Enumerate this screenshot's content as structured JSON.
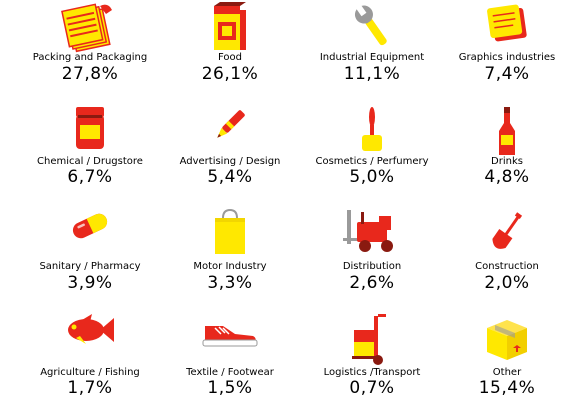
{
  "chart_data": {
    "type": "table",
    "categories": [
      "Packing and Packaging",
      "Food",
      "Industrial Equipment",
      "Graphics industries",
      "Chemical / Drugstore",
      "Advertising / Design",
      "Cosmetics / Perfumery",
      "Drinks",
      "Sanitary / Pharmacy",
      "Motor Industry",
      "Distribution",
      "Construction",
      "Agriculture / Fishing",
      "Textile / Footwear",
      "Logistics /Transport",
      "Other"
    ],
    "values": [
      27.8,
      26.1,
      11.1,
      7.4,
      6.7,
      5.4,
      5.0,
      4.8,
      3.9,
      3.3,
      2.6,
      2.0,
      1.7,
      1.5,
      0.7,
      15.4
    ],
    "value_labels": [
      "27,8%",
      "26,1%",
      "11,1%",
      "7,4%",
      "6,7%",
      "5,4%",
      "5,0%",
      "4,8%",
      "3,9%",
      "3,3%",
      "2,6%",
      "2,0%",
      "1,7%",
      "1,5%",
      "0,7%",
      "15,4%"
    ],
    "icons": [
      "packaging-icon",
      "food-box-icon",
      "wrench-icon",
      "paper-stack-icon",
      "jar-icon",
      "pen-icon",
      "perfume-brush-icon",
      "bottle-icon",
      "pill-capsule-icon",
      "shopping-bag-icon",
      "forklift-icon",
      "shovel-icon",
      "fish-icon",
      "sneaker-icon",
      "hand-truck-icon",
      "cardboard-box-icon"
    ],
    "colors": {
      "yellow": "#ffe800",
      "red": "#e8281c",
      "dark": "#8a1a10",
      "grey": "#9a9a9a"
    }
  }
}
